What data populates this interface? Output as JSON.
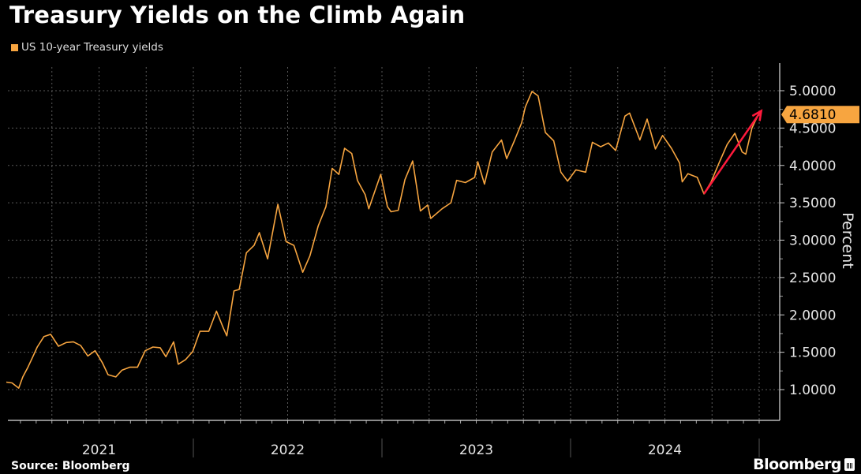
{
  "title": "Treasury Yields on the Climb Again",
  "source": "Source: Bloomberg",
  "logo": "Bloomberg",
  "colors": {
    "series": "#f7a540",
    "arrow": "#ff1a3c",
    "grid": "#5a5a5a",
    "background": "#000000"
  },
  "chart_data": {
    "type": "line",
    "title": "Treasury Yields on the Climb Again",
    "ylabel": "Percent",
    "xlabel": "",
    "ylim": [
      0.6,
      5.3
    ],
    "xlim": [
      "2021-01-01",
      "2025-01-25"
    ],
    "yticks": [
      "1.0000",
      "1.5000",
      "2.0000",
      "2.5000",
      "3.0000",
      "3.5000",
      "4.0000",
      "4.5000",
      "5.0000"
    ],
    "xtick_labels": [
      "2021",
      "2022",
      "2023",
      "2024"
    ],
    "grid": true,
    "legend_placement": "top-left",
    "last_value_label": "4.6810",
    "series": [
      {
        "name": "US 10-year Treasury yields",
        "points": [
          [
            "2021-01-04",
            1.1
          ],
          [
            "2021-01-15",
            1.09
          ],
          [
            "2021-01-28",
            1.02
          ],
          [
            "2021-02-05",
            1.17
          ],
          [
            "2021-02-15",
            1.3
          ],
          [
            "2021-02-25",
            1.45
          ],
          [
            "2021-03-05",
            1.57
          ],
          [
            "2021-03-18",
            1.71
          ],
          [
            "2021-03-31",
            1.74
          ],
          [
            "2021-04-15",
            1.58
          ],
          [
            "2021-04-30",
            1.63
          ],
          [
            "2021-05-14",
            1.64
          ],
          [
            "2021-05-28",
            1.59
          ],
          [
            "2021-06-11",
            1.45
          ],
          [
            "2021-06-25",
            1.52
          ],
          [
            "2021-07-09",
            1.36
          ],
          [
            "2021-07-20",
            1.2
          ],
          [
            "2021-08-04",
            1.17
          ],
          [
            "2021-08-16",
            1.26
          ],
          [
            "2021-08-31",
            1.3
          ],
          [
            "2021-09-15",
            1.3
          ],
          [
            "2021-09-30",
            1.52
          ],
          [
            "2021-10-15",
            1.57
          ],
          [
            "2021-10-29",
            1.56
          ],
          [
            "2021-11-09",
            1.44
          ],
          [
            "2021-11-24",
            1.64
          ],
          [
            "2021-12-03",
            1.34
          ],
          [
            "2021-12-17",
            1.4
          ],
          [
            "2021-12-31",
            1.51
          ],
          [
            "2022-01-14",
            1.78
          ],
          [
            "2022-01-31",
            1.78
          ],
          [
            "2022-02-15",
            2.05
          ],
          [
            "2022-02-28",
            1.83
          ],
          [
            "2022-03-07",
            1.72
          ],
          [
            "2022-03-21",
            2.32
          ],
          [
            "2022-03-31",
            2.34
          ],
          [
            "2022-04-14",
            2.83
          ],
          [
            "2022-04-29",
            2.93
          ],
          [
            "2022-05-09",
            3.1
          ],
          [
            "2022-05-25",
            2.75
          ],
          [
            "2022-06-14",
            3.48
          ],
          [
            "2022-06-30",
            2.98
          ],
          [
            "2022-07-15",
            2.93
          ],
          [
            "2022-08-01",
            2.57
          ],
          [
            "2022-08-15",
            2.79
          ],
          [
            "2022-08-31",
            3.19
          ],
          [
            "2022-09-15",
            3.45
          ],
          [
            "2022-09-27",
            3.96
          ],
          [
            "2022-10-10",
            3.88
          ],
          [
            "2022-10-21",
            4.23
          ],
          [
            "2022-11-04",
            4.16
          ],
          [
            "2022-11-15",
            3.8
          ],
          [
            "2022-11-30",
            3.61
          ],
          [
            "2022-12-07",
            3.42
          ],
          [
            "2022-12-20",
            3.68
          ],
          [
            "2022-12-30",
            3.88
          ],
          [
            "2023-01-12",
            3.45
          ],
          [
            "2023-01-19",
            3.38
          ],
          [
            "2023-02-02",
            3.4
          ],
          [
            "2023-02-15",
            3.81
          ],
          [
            "2023-03-02",
            4.06
          ],
          [
            "2023-03-17",
            3.39
          ],
          [
            "2023-03-31",
            3.47
          ],
          [
            "2023-04-06",
            3.29
          ],
          [
            "2023-04-28",
            3.42
          ],
          [
            "2023-05-15",
            3.5
          ],
          [
            "2023-05-26",
            3.8
          ],
          [
            "2023-06-12",
            3.77
          ],
          [
            "2023-06-30",
            3.84
          ],
          [
            "2023-07-06",
            4.05
          ],
          [
            "2023-07-19",
            3.75
          ],
          [
            "2023-08-03",
            4.18
          ],
          [
            "2023-08-21",
            4.34
          ],
          [
            "2023-08-31",
            4.09
          ],
          [
            "2023-09-15",
            4.33
          ],
          [
            "2023-09-29",
            4.57
          ],
          [
            "2023-10-06",
            4.78
          ],
          [
            "2023-10-19",
            4.99
          ],
          [
            "2023-10-31",
            4.93
          ],
          [
            "2023-11-14",
            4.44
          ],
          [
            "2023-11-30",
            4.33
          ],
          [
            "2023-12-14",
            3.91
          ],
          [
            "2023-12-27",
            3.79
          ],
          [
            "2024-01-12",
            3.94
          ],
          [
            "2024-01-31",
            3.91
          ],
          [
            "2024-02-13",
            4.31
          ],
          [
            "2024-02-29",
            4.25
          ],
          [
            "2024-03-15",
            4.3
          ],
          [
            "2024-03-29",
            4.2
          ],
          [
            "2024-04-16",
            4.66
          ],
          [
            "2024-04-25",
            4.7
          ],
          [
            "2024-05-15",
            4.34
          ],
          [
            "2024-05-29",
            4.62
          ],
          [
            "2024-06-14",
            4.22
          ],
          [
            "2024-06-28",
            4.4
          ],
          [
            "2024-07-15",
            4.23
          ],
          [
            "2024-07-31",
            4.03
          ],
          [
            "2024-08-05",
            3.78
          ],
          [
            "2024-08-16",
            3.89
          ],
          [
            "2024-09-03",
            3.84
          ],
          [
            "2024-09-16",
            3.62
          ],
          [
            "2024-09-30",
            3.78
          ],
          [
            "2024-10-15",
            4.03
          ],
          [
            "2024-10-31",
            4.28
          ],
          [
            "2024-11-15",
            4.43
          ],
          [
            "2024-11-29",
            4.18
          ],
          [
            "2024-12-06",
            4.15
          ],
          [
            "2024-12-18",
            4.5
          ],
          [
            "2024-12-24",
            4.59
          ],
          [
            "2024-12-31",
            4.681
          ]
        ]
      }
    ],
    "annotations": [
      {
        "type": "arrow",
        "from": [
          "2024-09-16",
          3.62
        ],
        "to": [
          "2025-01-05",
          4.73
        ]
      }
    ]
  }
}
